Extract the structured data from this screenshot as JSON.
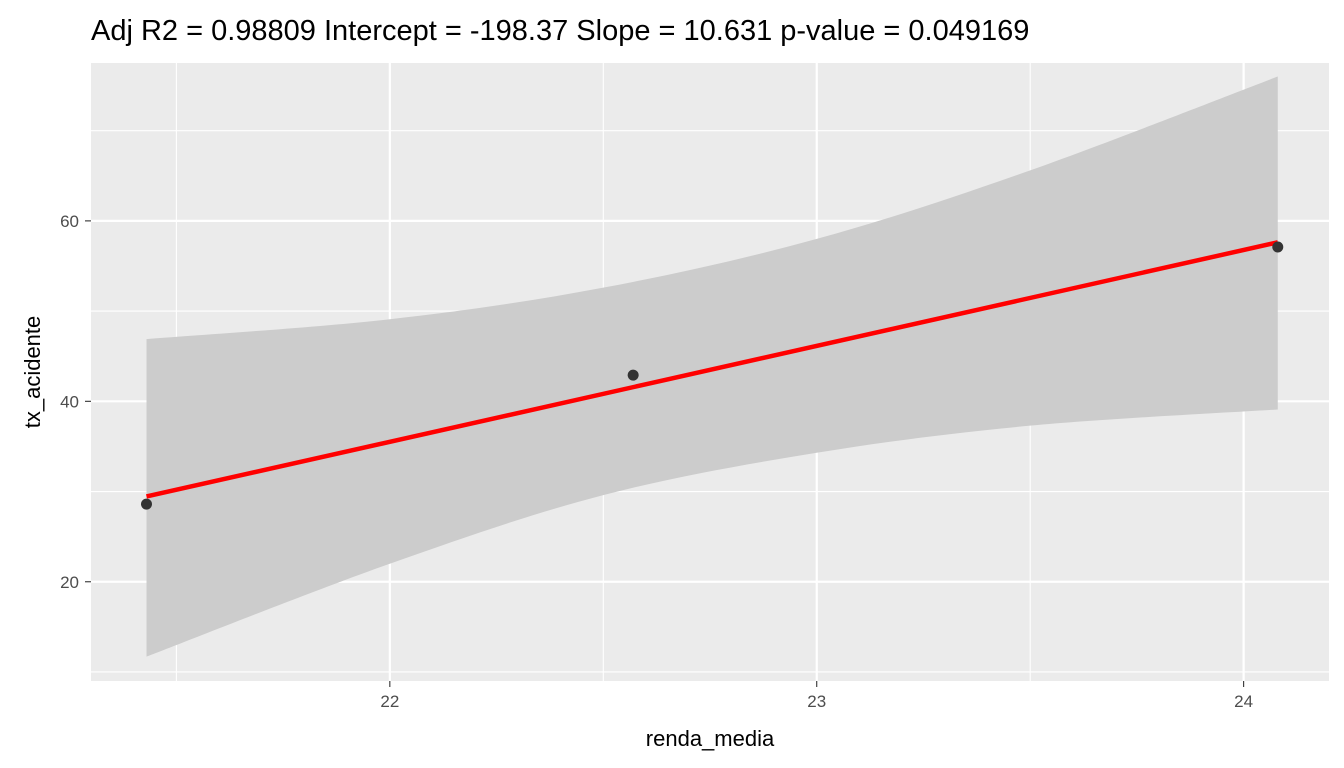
{
  "chart_data": {
    "type": "scatter",
    "title": "Adj R2 =  0.98809 Intercept = -198.37  Slope = 10.631  p-value = 0.049169",
    "xlabel": "renda_media",
    "ylabel": "tx_acidente",
    "xlim": [
      21.3,
      24.2
    ],
    "ylim": [
      9,
      77.5
    ],
    "x_ticks": [
      22,
      23,
      24
    ],
    "y_ticks": [
      20,
      40,
      60
    ],
    "x_tick_labels": [
      "22",
      "23",
      "24"
    ],
    "y_tick_labels": [
      "20",
      "40",
      "60"
    ],
    "grid": true,
    "legend": "none",
    "points": [
      {
        "x": 21.43,
        "y": 28.6
      },
      {
        "x": 22.57,
        "y": 42.9
      },
      {
        "x": 24.08,
        "y": 57.1
      }
    ],
    "fit_line": {
      "intercept": -198.37,
      "slope": 10.631,
      "x_range": [
        21.43,
        24.08
      ],
      "color": "#ff0000"
    },
    "confidence_band": {
      "color": "#cccccc",
      "x": [
        21.43,
        22.0,
        22.5,
        23.0,
        23.5,
        24.08
      ],
      "upper": [
        46.9,
        49.1,
        52.6,
        58.0,
        65.6,
        76.0
      ],
      "lower": [
        11.7,
        22.0,
        29.6,
        34.3,
        37.3,
        39.1
      ]
    },
    "colors": {
      "panel_background": "#ebebeb",
      "grid_major": "#ffffff",
      "point": "#333333"
    }
  }
}
